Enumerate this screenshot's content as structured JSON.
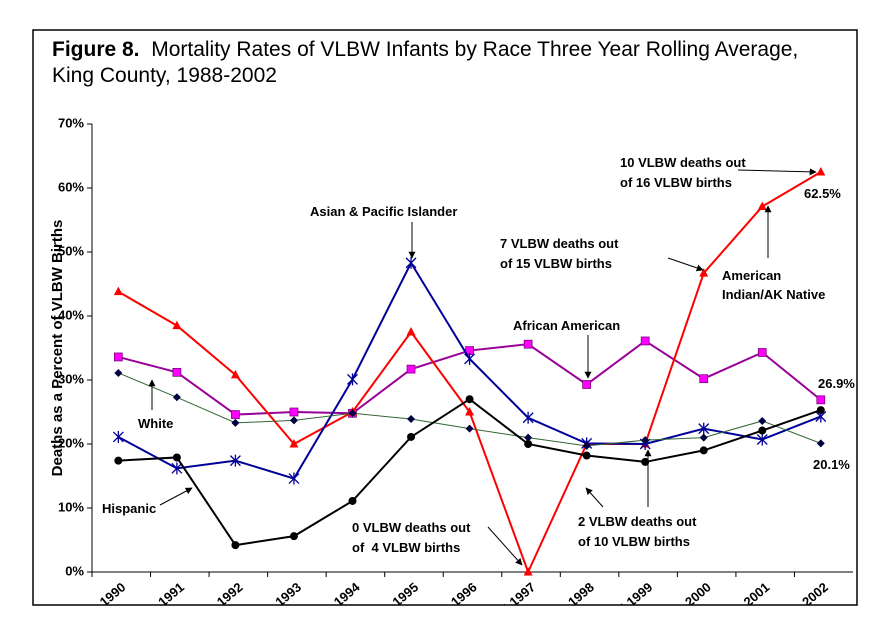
{
  "chart_data": {
    "type": "line",
    "title_bold": "Figure 8.",
    "title": "Mortality Rates of VLBW Infants by Race Three Year Rolling Average, King County, 1988-2002",
    "y_label": "Deaths as a Percent of VLBW Births",
    "categories": [
      "1988-1990",
      "1989-1991",
      "1990-1992",
      "1991-1993",
      "1992-1994",
      "1993-1995",
      "1994-1996",
      "1995-1997",
      "1996-1998",
      "1997-1999",
      "1998-2000",
      "1999-2001",
      "2000-2002"
    ],
    "ylim": [
      0,
      70
    ],
    "yticks": [
      {
        "value": 0,
        "label": "0%"
      },
      {
        "value": 10,
        "label": "10%"
      },
      {
        "value": 20,
        "label": "20%"
      },
      {
        "value": 30,
        "label": "30%"
      },
      {
        "value": 40,
        "label": "40%"
      },
      {
        "value": 50,
        "label": "50%"
      },
      {
        "value": 60,
        "label": "60%"
      },
      {
        "value": 70,
        "label": "70%"
      }
    ],
    "grid": false,
    "series": [
      {
        "name": "African American",
        "color": "#990099",
        "marker_color": "#ff00ff",
        "marker": "square",
        "values": [
          33.6,
          31.2,
          24.6,
          25.0,
          24.8,
          31.7,
          34.6,
          35.6,
          29.3,
          36.1,
          30.2,
          34.3,
          26.9
        ],
        "value_labels": [
          null,
          null,
          null,
          null,
          null,
          null,
          null,
          null,
          null,
          null,
          null,
          null,
          "26.9%"
        ]
      },
      {
        "name": "American Indian/AK Native",
        "color": "#ff0000",
        "marker_color": "#ff0000",
        "marker": "triangle",
        "values": [
          43.8,
          38.5,
          30.8,
          20.0,
          25.0,
          37.5,
          25.0,
          0,
          20.0,
          20.0,
          46.7,
          57.1,
          62.5
        ],
        "value_labels": [
          null,
          null,
          null,
          null,
          null,
          null,
          null,
          null,
          null,
          null,
          null,
          null,
          "62.5%"
        ]
      },
      {
        "name": "Asian & Pacific Islander",
        "color": "#000099",
        "marker_color": "#000099",
        "marker": "star",
        "values": [
          21.1,
          16.2,
          17.4,
          14.6,
          30.1,
          48.3,
          33.3,
          24.1,
          20.1,
          20.0,
          22.4,
          20.7,
          24.3
        ]
      },
      {
        "name": "White",
        "color": "#336633",
        "marker_color": "#000040",
        "marker": "diamond",
        "values": [
          31.1,
          27.3,
          23.3,
          23.7,
          24.8,
          23.9,
          22.4,
          21.0,
          19.7,
          20.6,
          21.0,
          23.6,
          20.1
        ],
        "value_labels": [
          null,
          null,
          null,
          null,
          null,
          null,
          null,
          null,
          null,
          null,
          null,
          null,
          "20.1%"
        ]
      },
      {
        "name": "Hispanic",
        "color": "#000000",
        "marker_color": "#000000",
        "marker": "circle",
        "values": [
          17.4,
          17.9,
          4.2,
          5.6,
          11.1,
          21.1,
          27.0,
          20.0,
          18.2,
          17.2,
          19.0,
          22.1,
          25.3
        ]
      }
    ],
    "annotations": [
      {
        "lines": [
          "10 VLBW deaths out",
          "of 16 VLBW births"
        ]
      },
      {
        "lines": [
          "7 VLBW deaths out",
          "of 15 VLBW births"
        ]
      },
      {
        "lines": [
          "0 VLBW deaths out",
          "of  4 VLBW births"
        ]
      },
      {
        "lines": [
          "2 VLBW deaths out",
          "of 10 VLBW births"
        ]
      }
    ]
  }
}
